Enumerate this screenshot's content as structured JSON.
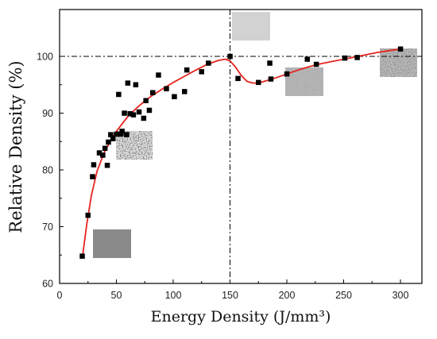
{
  "chart_data": {
    "type": "scatter",
    "title": "",
    "xlabel": "Energy Density (J/mm³)",
    "ylabel": "Relative Density (%)",
    "xlim": [
      0,
      320
    ],
    "ylim": [
      60,
      105
    ],
    "x_ticks": [
      0,
      50,
      100,
      150,
      200,
      250,
      300
    ],
    "y_ticks": [
      60,
      70,
      80,
      90,
      100
    ],
    "grid": false,
    "legend": "none",
    "series": [
      {
        "marker": "square",
        "color": "#000000",
        "points": [
          [
            20,
            64.8
          ],
          [
            25,
            72.0
          ],
          [
            29,
            78.8
          ],
          [
            30,
            80.9
          ],
          [
            35,
            83.0
          ],
          [
            38,
            82.6
          ],
          [
            40,
            83.8
          ],
          [
            42,
            80.8
          ],
          [
            43,
            84.9
          ],
          [
            45,
            86.2
          ],
          [
            47,
            85.5
          ],
          [
            50,
            86.3
          ],
          [
            52,
            93.3
          ],
          [
            54,
            86.3
          ],
          [
            55,
            86.8
          ],
          [
            57,
            90.0
          ],
          [
            59,
            86.2
          ],
          [
            60,
            95.3
          ],
          [
            62,
            89.9
          ],
          [
            65,
            89.7
          ],
          [
            67,
            95.0
          ],
          [
            70,
            90.2
          ],
          [
            74,
            89.1
          ],
          [
            76,
            92.2
          ],
          [
            79,
            90.5
          ],
          [
            82,
            93.6
          ],
          [
            87,
            96.7
          ],
          [
            94,
            94.3
          ],
          [
            101,
            92.9
          ],
          [
            112,
            97.6
          ],
          [
            110,
            93.8
          ],
          [
            125,
            97.3
          ],
          [
            131,
            98.8
          ],
          [
            150,
            100.0
          ],
          [
            157,
            96.1
          ],
          [
            175,
            95.4
          ],
          [
            186,
            96.0
          ],
          [
            185,
            98.8
          ],
          [
            200,
            96.9
          ],
          [
            218,
            99.5
          ],
          [
            226,
            98.6
          ],
          [
            251,
            99.7
          ],
          [
            262,
            99.8
          ],
          [
            300,
            101.3
          ]
        ]
      },
      {
        "type": "line",
        "color": "#e8231e",
        "points": [
          [
            20,
            64.5
          ],
          [
            24,
            70.5
          ],
          [
            28,
            75.5
          ],
          [
            33,
            79.8
          ],
          [
            40,
            83.4
          ],
          [
            50,
            86.8
          ],
          [
            60,
            89.4
          ],
          [
            70,
            91.3
          ],
          [
            80,
            92.9
          ],
          [
            90,
            94.2
          ],
          [
            100,
            95.4
          ],
          [
            110,
            96.5
          ],
          [
            120,
            97.6
          ],
          [
            130,
            98.6
          ],
          [
            140,
            99.3
          ],
          [
            146,
            99.5
          ],
          [
            150,
            99.2
          ],
          [
            155,
            98.1
          ],
          [
            160,
            96.6
          ],
          [
            165,
            95.6
          ],
          [
            170,
            95.3
          ],
          [
            175,
            95.3
          ],
          [
            180,
            95.6
          ],
          [
            190,
            96.2
          ],
          [
            200,
            96.9
          ],
          [
            210,
            97.6
          ],
          [
            220,
            98.2
          ],
          [
            230,
            98.7
          ],
          [
            240,
            99.1
          ],
          [
            250,
            99.5
          ],
          [
            260,
            99.9
          ],
          [
            270,
            100.3
          ],
          [
            280,
            100.7
          ],
          [
            290,
            101.0
          ],
          [
            300,
            101.3
          ]
        ]
      }
    ],
    "reference_lines": [
      {
        "orientation": "horizontal",
        "value": 100,
        "style": "dash-dot"
      },
      {
        "orientation": "vertical",
        "value": 150,
        "style": "dash-dot"
      }
    ],
    "inset_images": [
      {
        "x": 20,
        "y": 64.8,
        "texture": "highly-porous"
      },
      {
        "x": 60,
        "y": 86.8,
        "texture": "sparse-pores"
      },
      {
        "x": 150,
        "y": 100,
        "texture": "dense"
      },
      {
        "x": 185,
        "y": 96.0,
        "texture": "fine-pores"
      },
      {
        "x": 300,
        "y": 101.3,
        "texture": "speckled"
      }
    ]
  }
}
